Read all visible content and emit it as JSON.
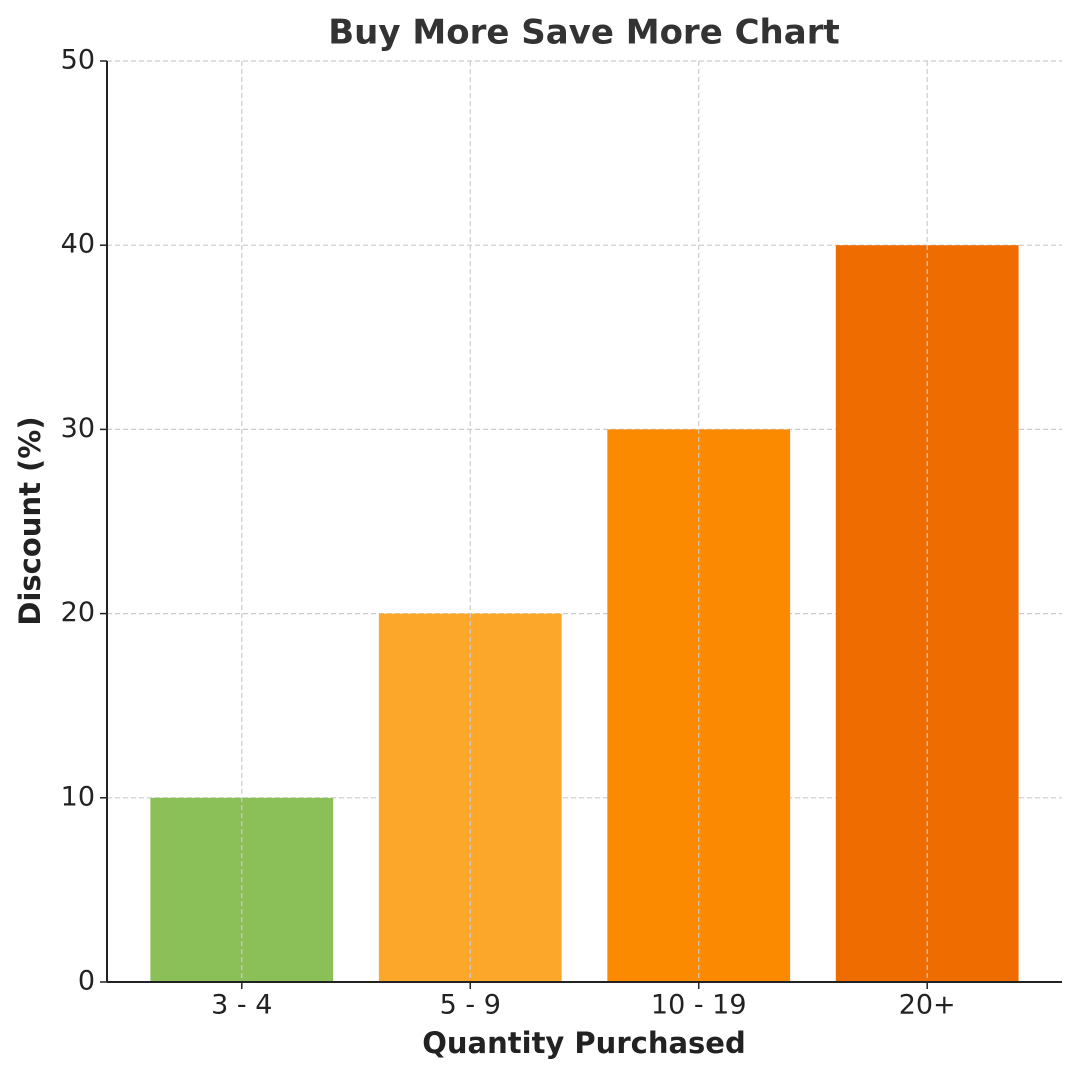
{
  "chart_data": {
    "type": "bar",
    "title": "Buy More Save More Chart",
    "x_label": "Quantity Purchased",
    "y_label": "Discount (%)",
    "categories": [
      "3 - 4",
      "5 - 9",
      "10 - 19",
      "20+"
    ],
    "values": [
      10,
      20,
      30,
      40
    ],
    "colors": [
      "#8bbf57",
      "#fda72a",
      "#fb8a00",
      "#ef6c00"
    ],
    "ylim": [
      0,
      50
    ],
    "yticks": [
      0,
      10,
      20,
      30,
      40,
      50
    ],
    "grid": true
  }
}
